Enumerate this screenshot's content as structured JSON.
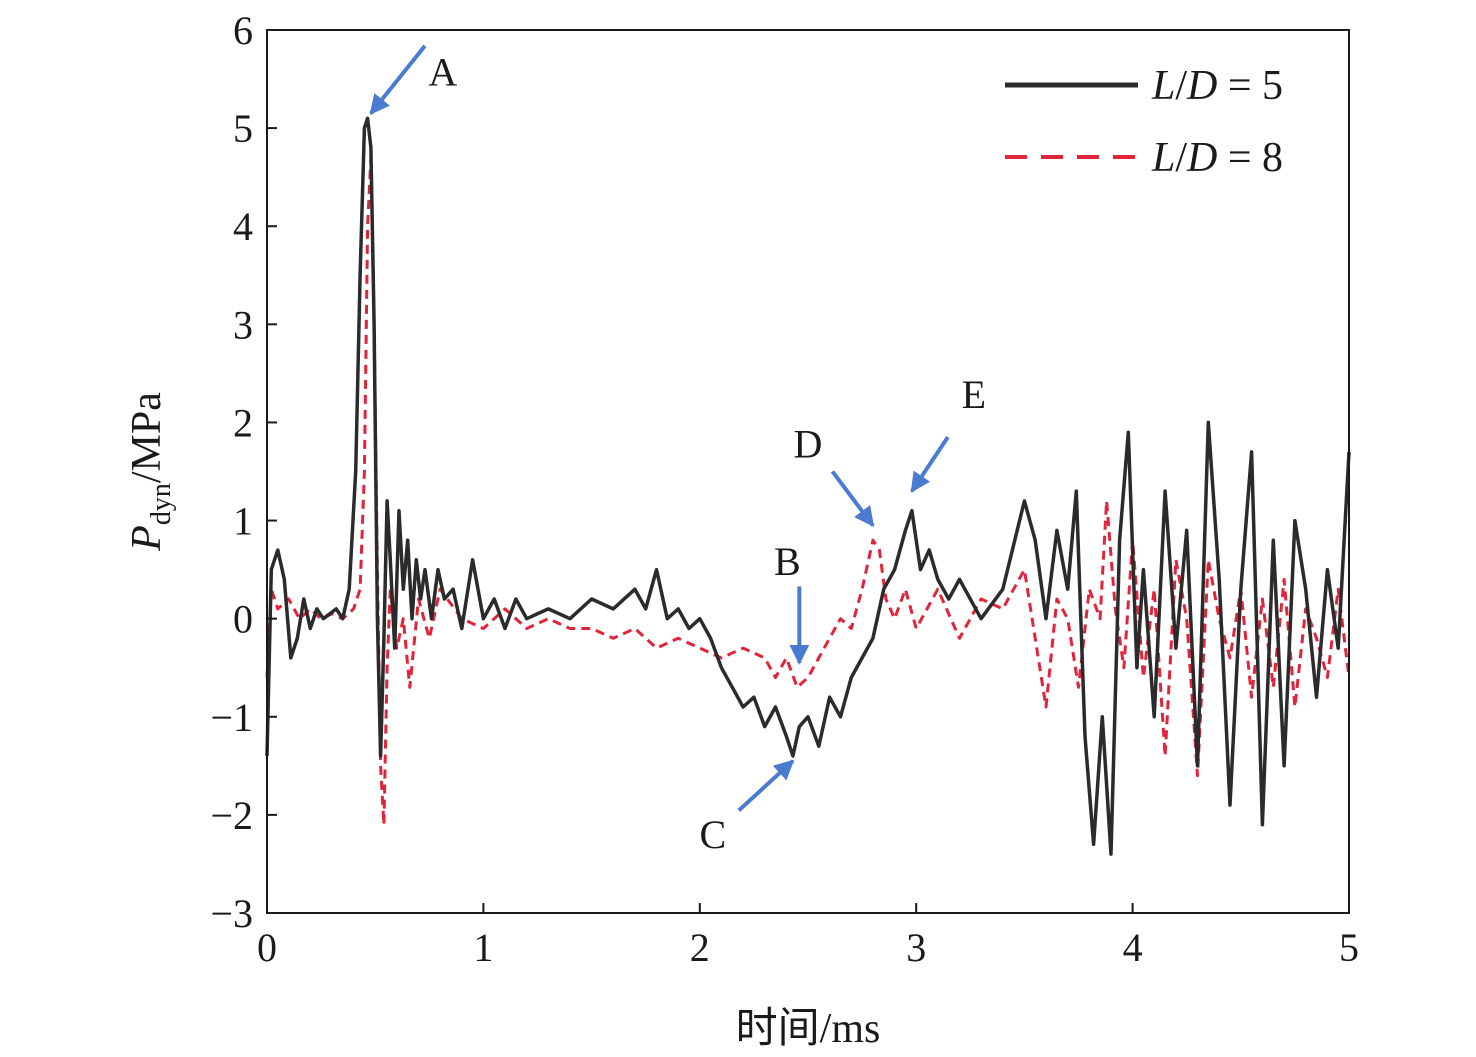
{
  "chart_data": {
    "type": "line",
    "xlabel": "时间/ms",
    "ylabel": {
      "main": "P",
      "sub": "dyn",
      "unit": "/MPa"
    },
    "xlim": [
      0,
      5
    ],
    "ylim": [
      -3,
      6
    ],
    "xticks": [
      0,
      1,
      2,
      3,
      4,
      5
    ],
    "yticks": [
      -3,
      -2,
      -1,
      0,
      1,
      2,
      3,
      4,
      5,
      6
    ],
    "grid": false,
    "legend_position": "top-right",
    "series": [
      {
        "name": "L/D = 5",
        "name_parts": {
          "L": "L",
          "slash": "/",
          "D": "D",
          "eq": " = 5"
        },
        "color": "#2b2b2b",
        "style": "solid",
        "x": [
          0.0,
          0.02,
          0.05,
          0.08,
          0.11,
          0.14,
          0.17,
          0.2,
          0.23,
          0.26,
          0.29,
          0.32,
          0.35,
          0.38,
          0.41,
          0.43,
          0.45,
          0.465,
          0.48,
          0.495,
          0.51,
          0.525,
          0.54,
          0.555,
          0.57,
          0.59,
          0.61,
          0.63,
          0.65,
          0.67,
          0.69,
          0.71,
          0.73,
          0.76,
          0.79,
          0.82,
          0.86,
          0.9,
          0.95,
          1.0,
          1.05,
          1.1,
          1.15,
          1.2,
          1.3,
          1.4,
          1.5,
          1.6,
          1.7,
          1.75,
          1.8,
          1.85,
          1.9,
          1.95,
          2.0,
          2.05,
          2.1,
          2.15,
          2.2,
          2.25,
          2.3,
          2.35,
          2.4,
          2.43,
          2.46,
          2.5,
          2.55,
          2.6,
          2.65,
          2.7,
          2.75,
          2.8,
          2.85,
          2.9,
          2.95,
          2.98,
          3.02,
          3.06,
          3.1,
          3.15,
          3.2,
          3.3,
          3.4,
          3.5,
          3.55,
          3.6,
          3.65,
          3.7,
          3.74,
          3.78,
          3.82,
          3.86,
          3.9,
          3.94,
          3.98,
          4.02,
          4.05,
          4.1,
          4.15,
          4.2,
          4.25,
          4.3,
          4.35,
          4.4,
          4.45,
          4.5,
          4.55,
          4.6,
          4.65,
          4.7,
          4.75,
          4.8,
          4.85,
          4.9,
          4.95,
          5.0
        ],
        "values": [
          -1.4,
          0.5,
          0.7,
          0.4,
          -0.4,
          -0.2,
          0.2,
          -0.1,
          0.1,
          0.0,
          0.05,
          0.1,
          0.0,
          0.3,
          1.5,
          3.5,
          5.0,
          5.1,
          4.8,
          3.0,
          0.0,
          -1.4,
          -0.2,
          1.2,
          0.6,
          -0.3,
          1.1,
          0.3,
          0.8,
          0.0,
          0.6,
          0.2,
          0.5,
          0.0,
          0.5,
          0.2,
          0.3,
          -0.1,
          0.6,
          0.0,
          0.2,
          -0.1,
          0.2,
          0.0,
          0.1,
          0.0,
          0.2,
          0.1,
          0.3,
          0.1,
          0.5,
          0.0,
          0.1,
          -0.1,
          0.0,
          -0.2,
          -0.5,
          -0.7,
          -0.9,
          -0.8,
          -1.1,
          -0.9,
          -1.2,
          -1.4,
          -1.1,
          -1.0,
          -1.3,
          -0.8,
          -1.0,
          -0.6,
          -0.4,
          -0.2,
          0.3,
          0.5,
          0.9,
          1.1,
          0.5,
          0.7,
          0.4,
          0.2,
          0.4,
          0.0,
          0.3,
          1.2,
          0.8,
          0.0,
          0.9,
          0.3,
          1.3,
          -1.2,
          -2.3,
          -1.0,
          -2.4,
          0.8,
          1.9,
          -0.5,
          0.5,
          -1.0,
          1.3,
          -0.3,
          0.9,
          -1.5,
          2.0,
          0.4,
          -1.9,
          0.3,
          1.7,
          -2.1,
          0.8,
          -1.5,
          1.0,
          0.3,
          -0.8,
          0.5,
          -0.3,
          1.7
        ]
      },
      {
        "name": "L/D = 8",
        "name_parts": {
          "L": "L",
          "slash": "/",
          "D": "D",
          "eq": " = 8"
        },
        "color": "#e0243a",
        "style": "dashed",
        "x": [
          0.0,
          0.02,
          0.05,
          0.1,
          0.15,
          0.2,
          0.25,
          0.3,
          0.35,
          0.4,
          0.43,
          0.45,
          0.465,
          0.48,
          0.495,
          0.51,
          0.525,
          0.54,
          0.555,
          0.57,
          0.6,
          0.63,
          0.66,
          0.7,
          0.75,
          0.8,
          0.9,
          1.0,
          1.1,
          1.2,
          1.3,
          1.4,
          1.5,
          1.6,
          1.7,
          1.8,
          1.9,
          2.0,
          2.1,
          2.2,
          2.3,
          2.35,
          2.4,
          2.45,
          2.5,
          2.55,
          2.6,
          2.65,
          2.7,
          2.75,
          2.8,
          2.83,
          2.86,
          2.9,
          2.95,
          3.0,
          3.05,
          3.1,
          3.2,
          3.3,
          3.4,
          3.5,
          3.55,
          3.6,
          3.65,
          3.7,
          3.75,
          3.8,
          3.85,
          3.88,
          3.92,
          3.96,
          4.0,
          4.05,
          4.1,
          4.15,
          4.2,
          4.25,
          4.3,
          4.35,
          4.4,
          4.45,
          4.5,
          4.55,
          4.6,
          4.65,
          4.7,
          4.75,
          4.8,
          4.85,
          4.9,
          4.95,
          5.0
        ],
        "values": [
          -0.6,
          0.3,
          0.1,
          0.2,
          0.0,
          0.1,
          0.0,
          0.05,
          0.0,
          0.1,
          0.3,
          1.5,
          4.0,
          4.7,
          3.0,
          0.5,
          -1.5,
          -2.1,
          -0.5,
          0.3,
          -0.3,
          0.0,
          -0.7,
          0.2,
          -0.2,
          0.3,
          0.0,
          -0.1,
          0.1,
          -0.1,
          0.0,
          -0.1,
          -0.1,
          -0.2,
          -0.1,
          -0.3,
          -0.2,
          -0.3,
          -0.4,
          -0.3,
          -0.4,
          -0.6,
          -0.4,
          -0.7,
          -0.6,
          -0.4,
          -0.2,
          0.0,
          -0.1,
          0.3,
          0.8,
          0.7,
          0.2,
          0.0,
          0.3,
          -0.1,
          0.1,
          0.3,
          -0.2,
          0.2,
          0.1,
          0.5,
          -0.2,
          -0.9,
          0.2,
          0.0,
          -0.7,
          0.3,
          0.0,
          1.2,
          0.1,
          -0.5,
          0.8,
          -0.6,
          0.3,
          -1.4,
          0.6,
          0.0,
          -1.6,
          0.6,
          0.0,
          -0.4,
          0.3,
          -0.8,
          0.2,
          -0.7,
          0.4,
          -0.9,
          0.1,
          -0.2,
          -0.6,
          0.3,
          -0.6
        ]
      }
    ],
    "annotations": [
      {
        "label": "A",
        "x": 0.48,
        "y": 5.15
      },
      {
        "label": "B",
        "x": 2.46,
        "y": -0.45
      },
      {
        "label": "C",
        "x": 2.43,
        "y": -1.45
      },
      {
        "label": "D",
        "x": 2.8,
        "y": 0.95
      },
      {
        "label": "E",
        "x": 2.98,
        "y": 1.3
      }
    ],
    "annotation_color": "#4a7bd0"
  }
}
